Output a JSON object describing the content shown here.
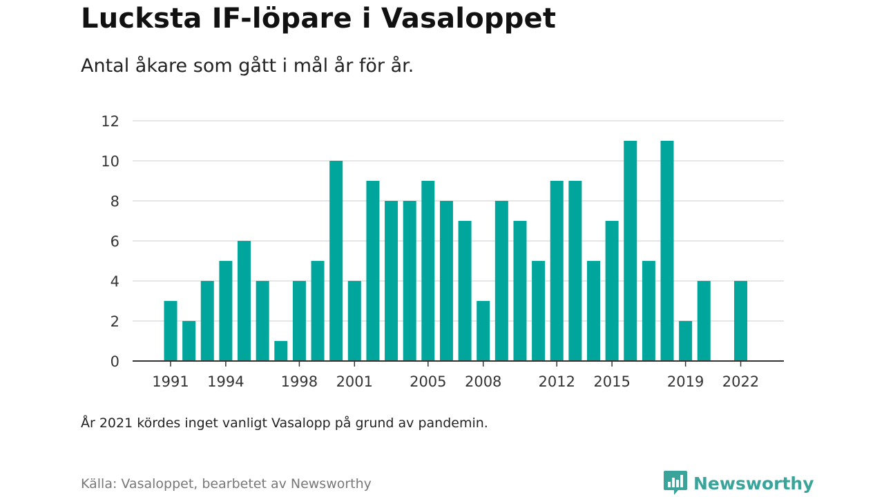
{
  "title": "Lucksta IF-löpare i Vasaloppet",
  "subtitle": "Antal åkare som gått i mål år för år.",
  "note": "År 2021 kördes inget vanligt Vasalopp på grund av pandemin.",
  "source": "Källa: Vasaloppet, bearbetet av Newsworthy",
  "brand": {
    "name": "Newsworthy",
    "icon": "newsworthy-logo-icon",
    "color": "#3aa39a"
  },
  "chart_data": {
    "type": "bar",
    "x": [
      1991,
      1992,
      1993,
      1994,
      1995,
      1996,
      1997,
      1998,
      1999,
      2000,
      2001,
      2002,
      2003,
      2004,
      2005,
      2006,
      2007,
      2008,
      2009,
      2010,
      2011,
      2012,
      2013,
      2014,
      2015,
      2016,
      2017,
      2018,
      2019,
      2020,
      2021,
      2022
    ],
    "values": [
      3,
      2,
      4,
      5,
      6,
      4,
      1,
      4,
      5,
      10,
      4,
      9,
      8,
      8,
      9,
      8,
      7,
      3,
      8,
      7,
      5,
      9,
      9,
      5,
      7,
      11,
      5,
      11,
      2,
      4,
      null,
      4
    ],
    "x_tick_labels": [
      "1991",
      "1994",
      "1998",
      "2001",
      "2005",
      "2008",
      "2012",
      "2015",
      "2019",
      "2022"
    ],
    "y_ticks": [
      "0",
      "2",
      "4",
      "6",
      "8",
      "10",
      "12"
    ],
    "ylim": [
      0,
      12
    ],
    "grid": true,
    "bar_color": "#00a59b",
    "xlabel": "",
    "ylabel": ""
  }
}
